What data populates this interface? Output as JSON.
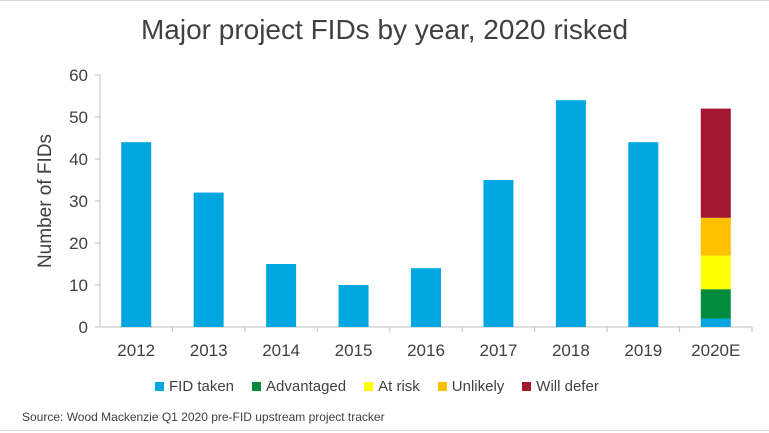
{
  "chart_data": {
    "type": "bar",
    "stacked": true,
    "title": "Major project FIDs by year, 2020 risked",
    "xlabel": "",
    "ylabel": "Number of FIDs",
    "ylim": [
      0,
      60
    ],
    "yticks": [
      "0",
      "10",
      "20",
      "30",
      "40",
      "50",
      "60"
    ],
    "grid": false,
    "legend_position": "bottom",
    "categories": [
      "2012",
      "2013",
      "2014",
      "2015",
      "2016",
      "2017",
      "2018",
      "2019",
      "2020E"
    ],
    "series": [
      {
        "name": "FID taken",
        "color": "#00a6e0",
        "values": [
          44,
          32,
          15,
          10,
          14,
          35,
          54,
          44,
          2
        ]
      },
      {
        "name": "Advantaged",
        "color": "#008c3c",
        "values": [
          0,
          0,
          0,
          0,
          0,
          0,
          0,
          0,
          7
        ]
      },
      {
        "name": "At risk",
        "color": "#ffff00",
        "values": [
          0,
          0,
          0,
          0,
          0,
          0,
          0,
          0,
          8
        ]
      },
      {
        "name": "Unlikely",
        "color": "#ffc000",
        "values": [
          0,
          0,
          0,
          0,
          0,
          0,
          0,
          0,
          9
        ]
      },
      {
        "name": "Will defer",
        "color": "#a3182f",
        "values": [
          0,
          0,
          0,
          0,
          0,
          0,
          0,
          0,
          26
        ]
      }
    ]
  },
  "source_note": "Source: Wood Mackenzie  Q1 2020 pre-FID  upstream project tracker"
}
